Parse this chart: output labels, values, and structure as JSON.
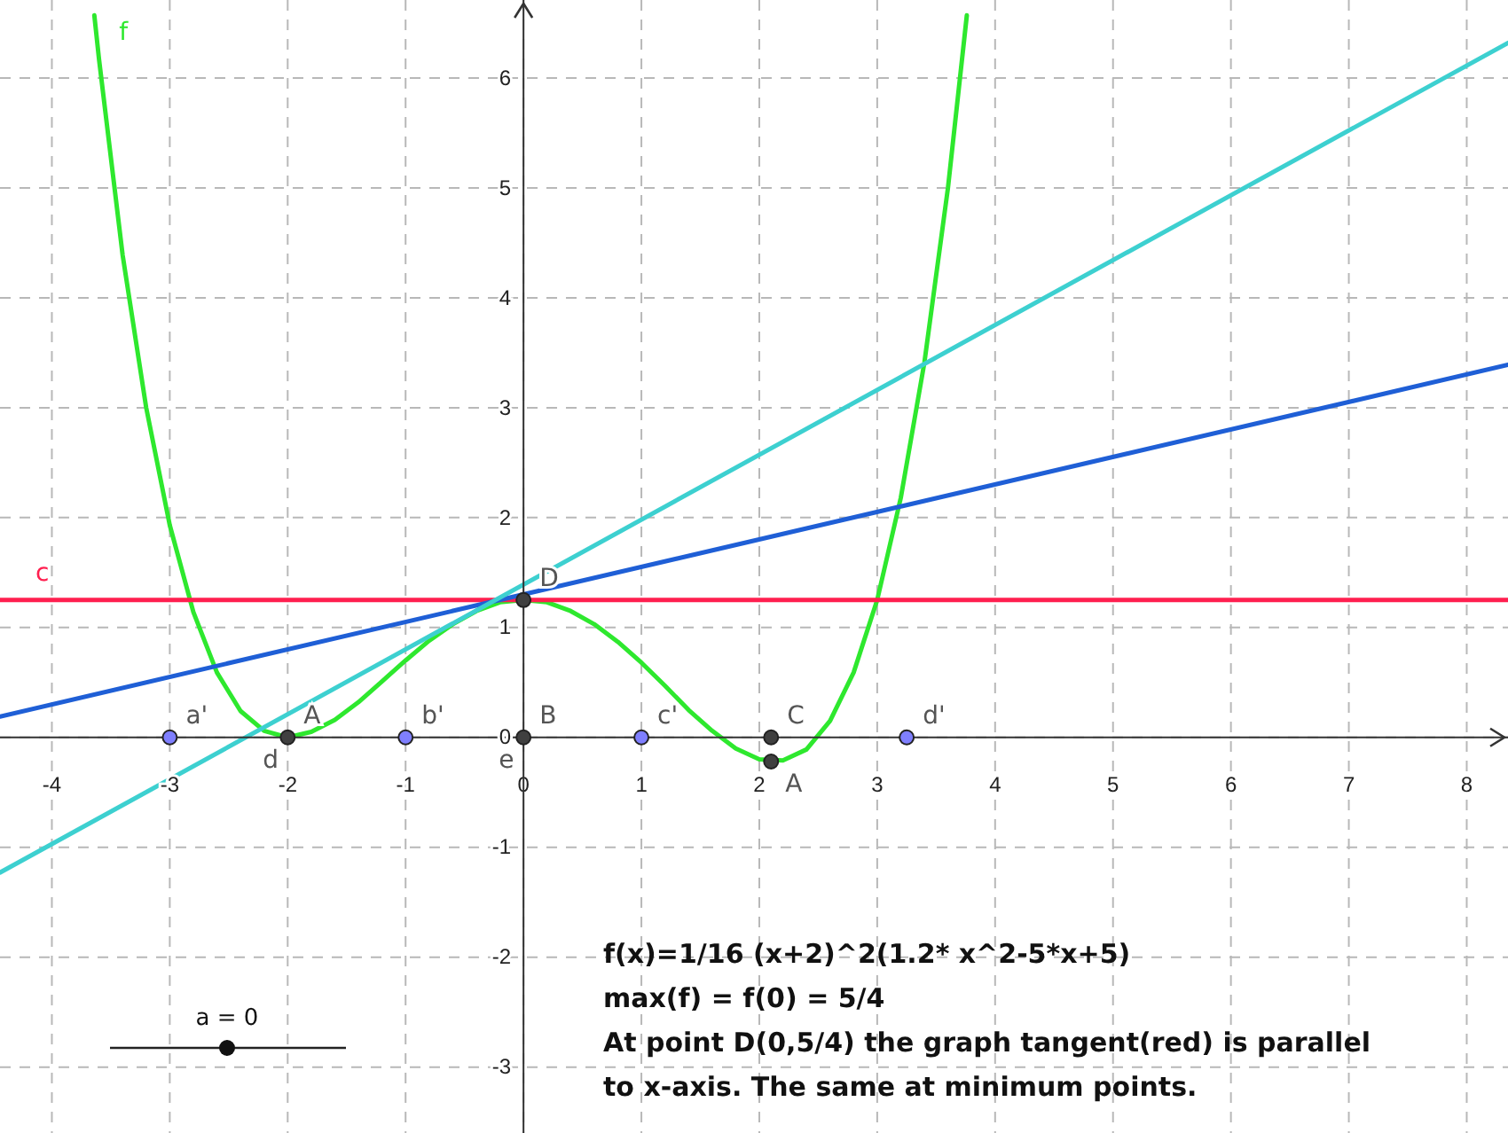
{
  "chart_data": {
    "type": "line",
    "xlim": [
      -4.44,
      8.35
    ],
    "ylim": [
      -3.6,
      6.71
    ],
    "xticks": [
      -4,
      -3,
      -2,
      -1,
      0,
      1,
      2,
      3,
      4,
      5,
      6,
      7,
      8
    ],
    "yticks": [
      -3,
      -2,
      -1,
      0,
      1,
      2,
      3,
      4,
      5,
      6
    ],
    "grid": true,
    "legend": false,
    "line_style": "solid",
    "series": [
      {
        "name": "f",
        "color": "#2ee82e",
        "x": [
          -3.64,
          -3.6,
          -3.4,
          -3.2,
          -3.0,
          -2.8,
          -2.6,
          -2.4,
          -2.2,
          -2.0,
          -1.8,
          -1.6,
          -1.4,
          -1.2,
          -1.0,
          -0.8,
          -0.6,
          -0.4,
          -0.2,
          0,
          0.2,
          0.4,
          0.6,
          0.8,
          1.0,
          1.2,
          1.4,
          1.6,
          1.8,
          2.0,
          2.2,
          2.4,
          2.6,
          2.8,
          3.0,
          3.2,
          3.4,
          3.6,
          3.76
        ],
        "values": [
          6.57,
          6.17,
          4.39,
          3.0,
          1.93,
          1.14,
          0.59,
          0.24,
          0.06,
          0,
          0.05,
          0.16,
          0.32,
          0.51,
          0.7,
          0.88,
          1.03,
          1.15,
          1.23,
          1.25,
          1.23,
          1.15,
          1.03,
          0.87,
          0.68,
          0.47,
          0.25,
          0.06,
          -0.1,
          -0.2,
          -0.21,
          -0.11,
          0.15,
          0.59,
          1.25,
          2.18,
          3.41,
          5.0,
          6.57
        ]
      },
      {
        "name": "c",
        "color": "#ff1f4f",
        "x": [
          -4.44,
          8.35
        ],
        "values": [
          1.25,
          1.25
        ]
      },
      {
        "color": "#1f5fd6",
        "x": [
          -4.44,
          8.35
        ],
        "values": [
          0.19,
          3.39
        ]
      },
      {
        "color": "#3dd0d0",
        "x": [
          -4.44,
          8.35
        ],
        "values": [
          -1.23,
          6.32
        ]
      },
      {
        "type": "scatter",
        "marker": "circle",
        "color": "#404040",
        "x": [
          -2,
          0,
          2.1,
          0,
          2.1
        ],
        "values": [
          0,
          0,
          0,
          1.25,
          -0.22
        ]
      },
      {
        "type": "scatter",
        "marker": "circle",
        "color": "#7f7fff",
        "x": [
          -3,
          -1,
          1,
          3.25
        ],
        "values": [
          0,
          0,
          0,
          0
        ]
      }
    ],
    "annotations": [
      "f(x)=1/16 (x+2)^2(1.2* x^2-5*x+5)",
      "max(f) = f(0) = 5/4",
      "At point D(0,5/4) the graph tangent(red) is parallel",
      "to x-axis. The same at minimum points.",
      "a = 0",
      {
        "text": "A",
        "x": -2,
        "y": 0
      },
      {
        "text": "d",
        "x": -2,
        "y": 0
      },
      {
        "text": "B",
        "x": 0,
        "y": 0
      },
      {
        "text": "e",
        "x": 0,
        "y": 0
      },
      {
        "text": "C",
        "x": 2.1,
        "y": 0
      },
      {
        "text": "A",
        "x": 2.1,
        "y": -0.22
      },
      {
        "text": "D",
        "x": 0,
        "y": 1.25
      },
      {
        "text": "a'",
        "x": -3,
        "y": 0
      },
      {
        "text": "b'",
        "x": -1,
        "y": 0
      },
      {
        "text": "c'",
        "x": 1,
        "y": 0
      },
      {
        "text": "d'",
        "x": 3.25,
        "y": 0
      }
    ]
  }
}
